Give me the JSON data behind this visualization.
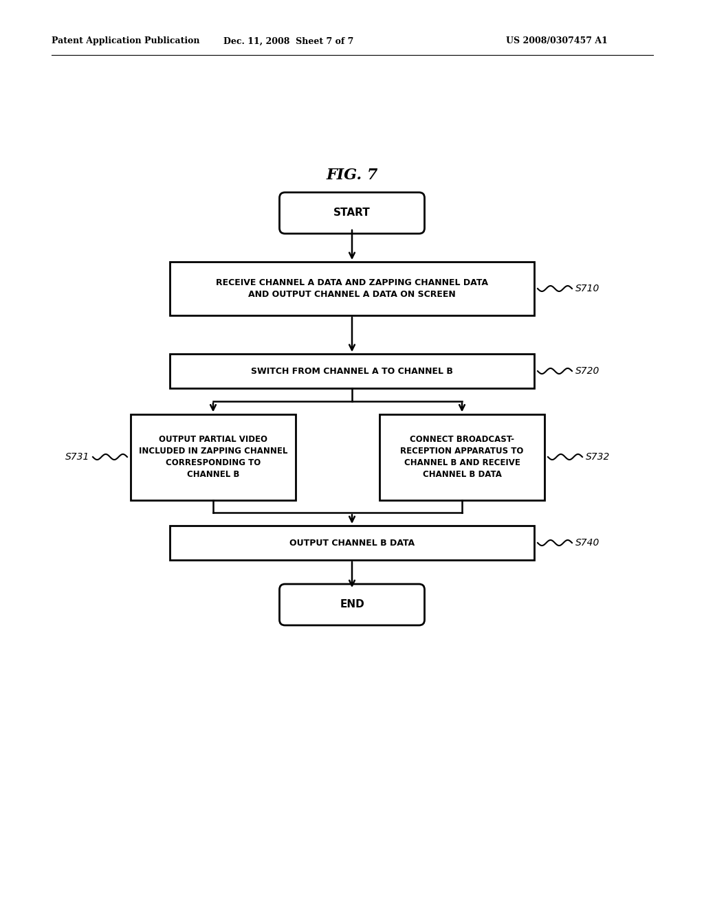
{
  "bg_color": "#ffffff",
  "header_left": "Patent Application Publication",
  "header_mid": "Dec. 11, 2008  Sheet 7 of 7",
  "header_right": "US 2008/0307457 A1",
  "fig_title": "FIG. 7",
  "text_color": "#000000"
}
